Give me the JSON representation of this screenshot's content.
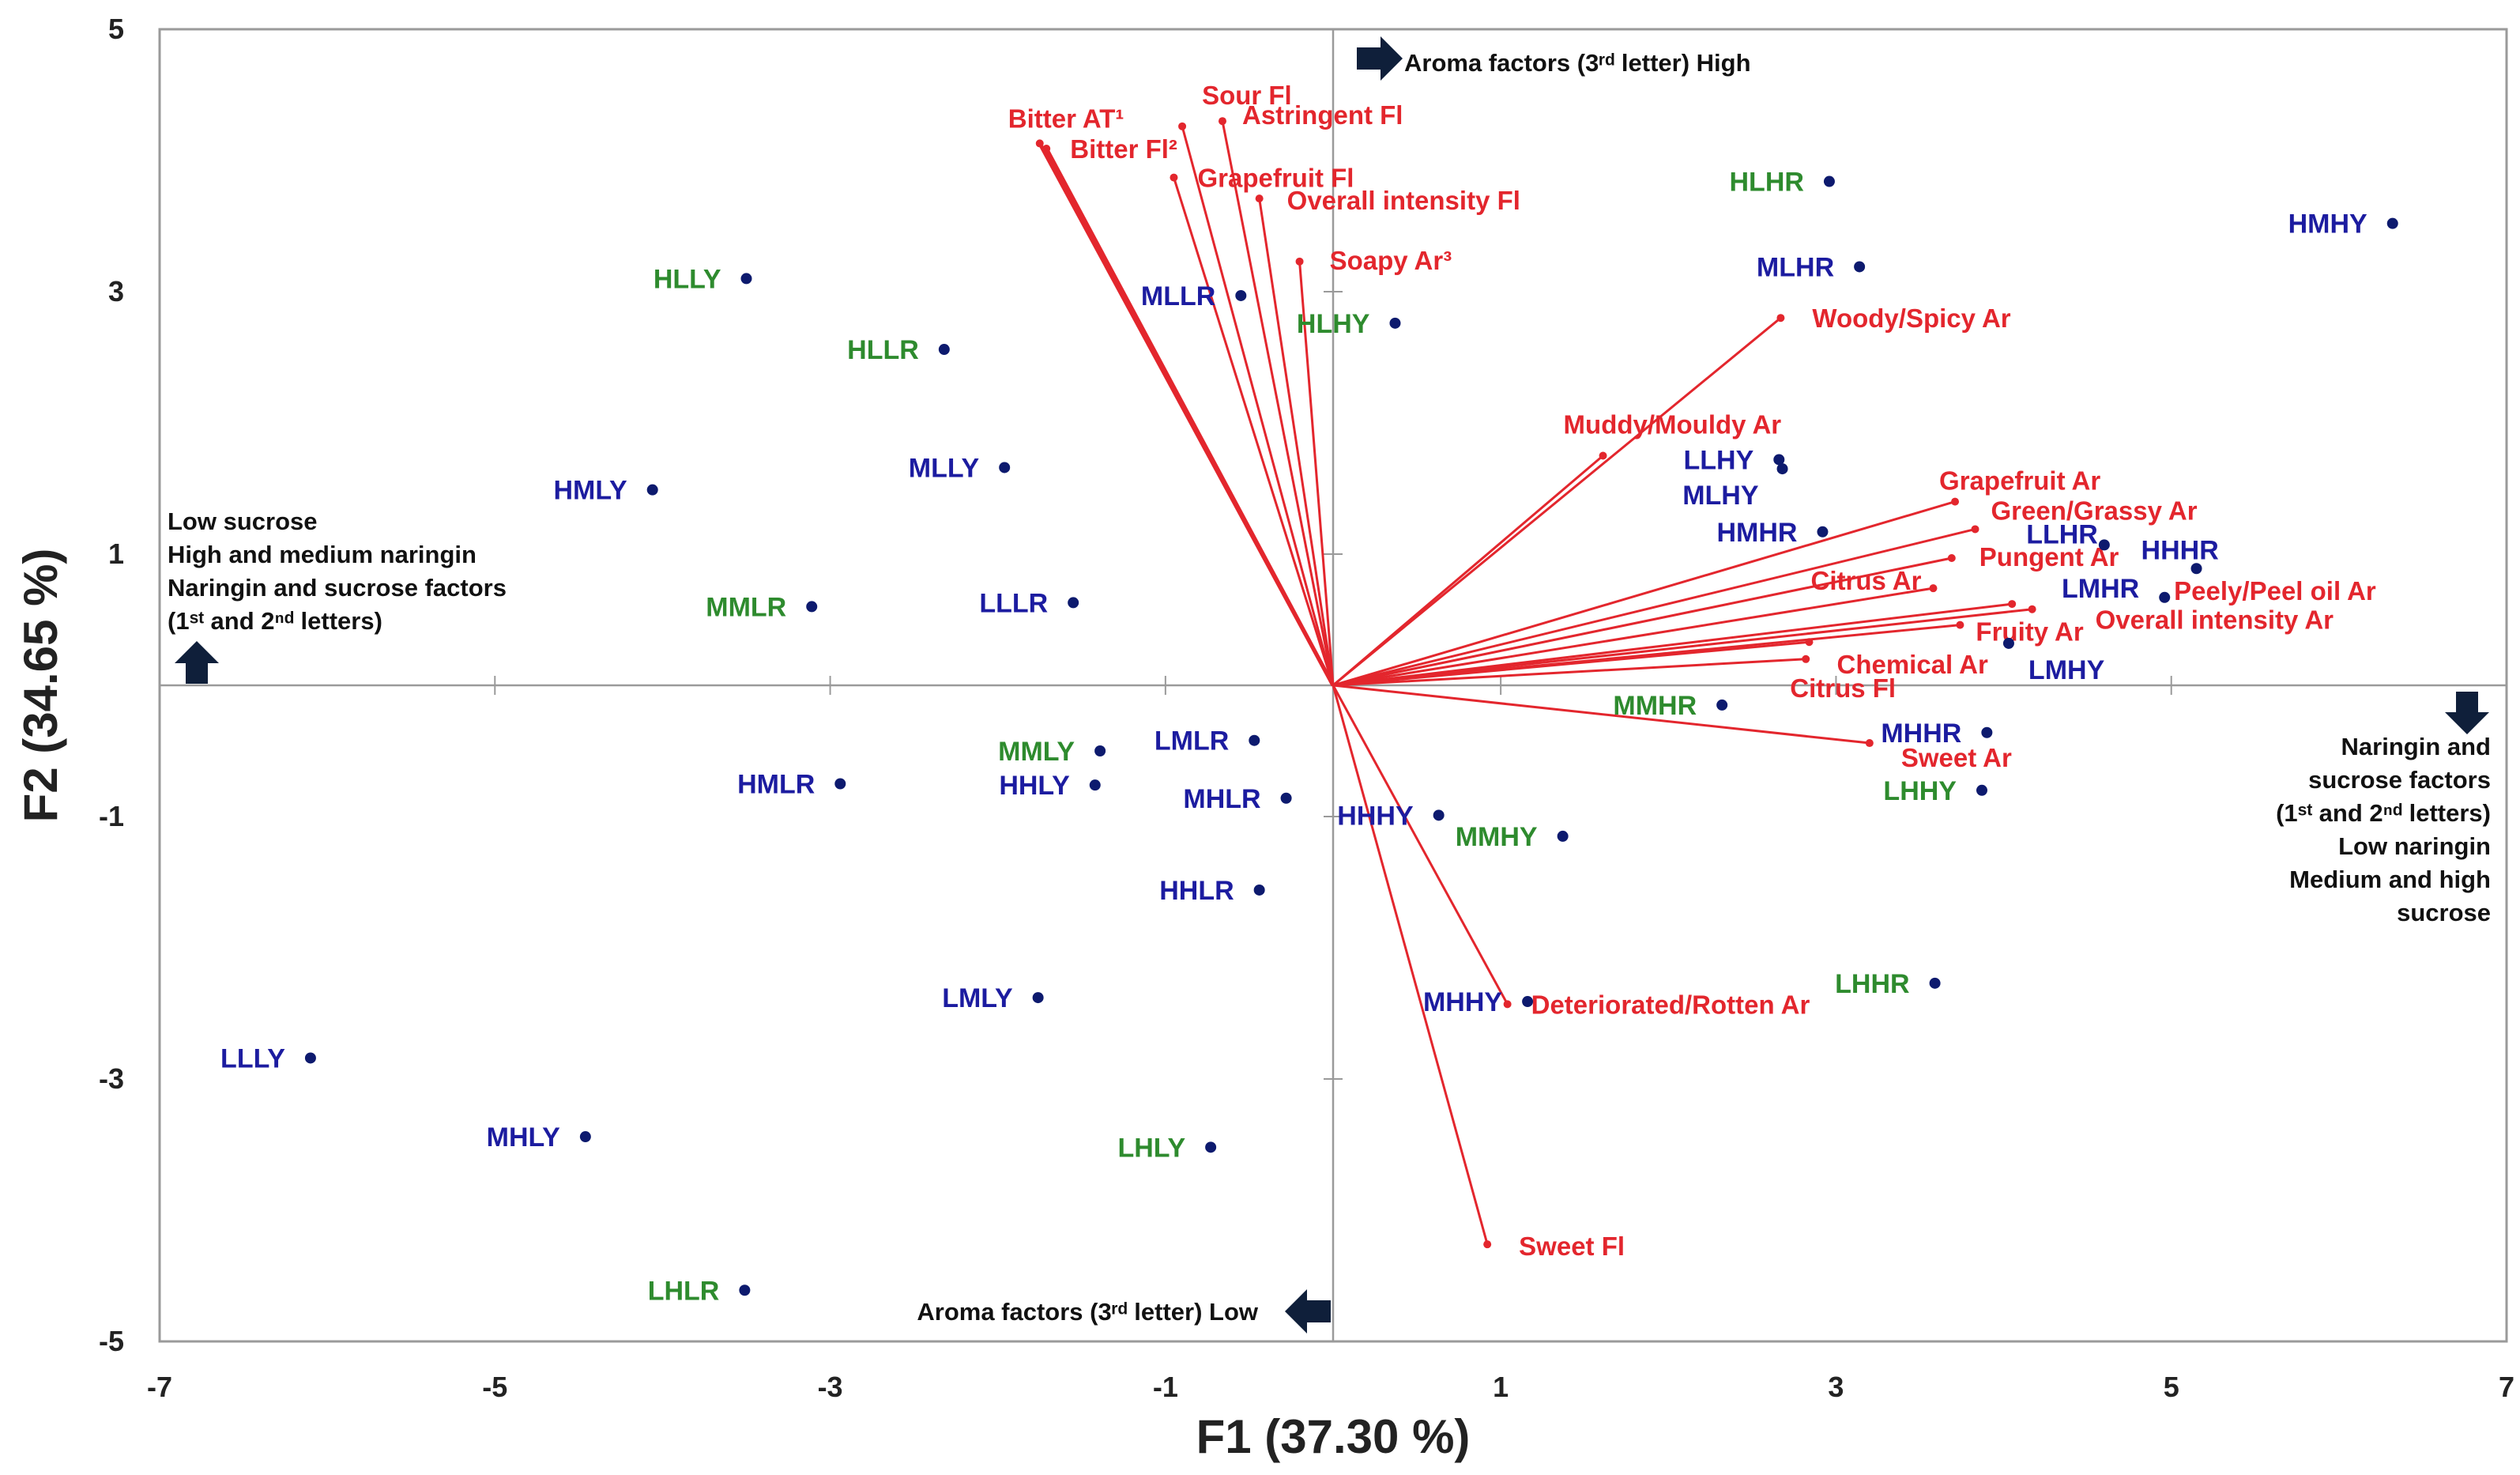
{
  "chart_data": {
    "type": "scatter",
    "subtype": "biplot",
    "xlabel": "F1 (37.30 %)",
    "ylabel": "F2 (34.65 %)",
    "xlim": [
      -7,
      7
    ],
    "ylim": [
      -5,
      5
    ],
    "xticks": [
      -7,
      -5,
      -3,
      -1,
      1,
      3,
      5,
      7
    ],
    "yticks": [
      5,
      3,
      1,
      -1,
      -3,
      -5
    ],
    "colors": {
      "blue": "#1c1ca0",
      "green": "#2e8b2e",
      "vector": "#e3262d",
      "dot": "#0d1a6e"
    },
    "observations": [
      {
        "label": "HMHY",
        "x": 6.32,
        "y": 3.52,
        "group": "blue"
      },
      {
        "label": "HLHR",
        "x": 2.96,
        "y": 3.84,
        "group": "green"
      },
      {
        "label": "MLHR",
        "x": 3.14,
        "y": 3.19,
        "group": "blue"
      },
      {
        "label": "HLLY",
        "x": -3.5,
        "y": 3.1,
        "group": "green"
      },
      {
        "label": "MLLR",
        "x": -0.55,
        "y": 2.97,
        "group": "blue"
      },
      {
        "label": "HLHY",
        "x": 0.37,
        "y": 2.76,
        "group": "green"
      },
      {
        "label": "HLLR",
        "x": -2.32,
        "y": 2.56,
        "group": "green"
      },
      {
        "label": "MLLY",
        "x": -1.96,
        "y": 1.66,
        "group": "blue"
      },
      {
        "label": "HMLY",
        "x": -4.06,
        "y": 1.49,
        "group": "blue"
      },
      {
        "label": "LLHY",
        "x": 2.66,
        "y": 1.72,
        "group": "blue"
      },
      {
        "label": "MLHY",
        "x": 2.68,
        "y": 1.65,
        "group": "blue"
      },
      {
        "label": "HMHR",
        "x": 2.92,
        "y": 1.17,
        "group": "blue"
      },
      {
        "label": "LLHR",
        "x": 4.6,
        "y": 1.07,
        "group": "blue"
      },
      {
        "label": "HHHR",
        "x": 5.15,
        "y": 0.89,
        "group": "blue"
      },
      {
        "label": "LMHR",
        "x": 4.96,
        "y": 0.67,
        "group": "blue"
      },
      {
        "label": "LMHY",
        "x": 4.03,
        "y": 0.32,
        "group": "blue"
      },
      {
        "label": "MMLR",
        "x": -3.11,
        "y": 0.6,
        "group": "green"
      },
      {
        "label": "LLLR",
        "x": -1.55,
        "y": 0.63,
        "group": "blue"
      },
      {
        "label": "MMHR",
        "x": 2.32,
        "y": -0.15,
        "group": "green"
      },
      {
        "label": "MHHR",
        "x": 3.9,
        "y": -0.36,
        "group": "blue"
      },
      {
        "label": "LHHY",
        "x": 3.87,
        "y": -0.8,
        "group": "green"
      },
      {
        "label": "LMLR",
        "x": -0.47,
        "y": -0.42,
        "group": "blue"
      },
      {
        "label": "MMLY",
        "x": -1.39,
        "y": -0.5,
        "group": "green"
      },
      {
        "label": "HHLY",
        "x": -1.42,
        "y": -0.76,
        "group": "blue"
      },
      {
        "label": "HMLR",
        "x": -2.94,
        "y": -0.75,
        "group": "blue"
      },
      {
        "label": "MHLR",
        "x": -0.28,
        "y": -0.86,
        "group": "blue"
      },
      {
        "label": "HHHY",
        "x": 0.63,
        "y": -0.99,
        "group": "blue"
      },
      {
        "label": "MMHY",
        "x": 1.37,
        "y": -1.15,
        "group": "green"
      },
      {
        "label": "HHLR",
        "x": -0.44,
        "y": -1.56,
        "group": "blue"
      },
      {
        "label": "LHHR",
        "x": 3.59,
        "y": -2.27,
        "group": "green"
      },
      {
        "label": "MHHY",
        "x": 1.16,
        "y": -2.41,
        "group": "blue"
      },
      {
        "label": "LMLY",
        "x": -1.76,
        "y": -2.38,
        "group": "blue"
      },
      {
        "label": "LLLY",
        "x": -6.1,
        "y": -2.84,
        "group": "blue"
      },
      {
        "label": "MHLY",
        "x": -4.46,
        "y": -3.44,
        "group": "blue"
      },
      {
        "label": "LHLY",
        "x": -0.73,
        "y": -3.52,
        "group": "green"
      },
      {
        "label": "LHLR",
        "x": -3.51,
        "y": -4.61,
        "group": "green"
      }
    ],
    "variables": [
      {
        "label": "Bitter AT¹",
        "x": -1.75,
        "y": 4.13
      },
      {
        "label": "Bitter Fl²",
        "x": -1.71,
        "y": 4.09
      },
      {
        "label": "Sour Fl",
        "x": -0.9,
        "y": 4.26
      },
      {
        "label": "Astringent Fl",
        "x": -0.66,
        "y": 4.3
      },
      {
        "label": "Grapefruit Fl",
        "x": -0.95,
        "y": 3.87
      },
      {
        "label": "Overall intensity Fl",
        "x": -0.44,
        "y": 3.71
      },
      {
        "label": "Soapy Ar³",
        "x": -0.2,
        "y": 3.23
      },
      {
        "label": "Woody/Spicy Ar",
        "x": 2.67,
        "y": 2.8
      },
      {
        "label": "Muddy/Mouldy  Ar",
        "x": 1.61,
        "y": 1.75
      },
      {
        "label": "Grapefruit Ar",
        "x": 3.71,
        "y": 1.4
      },
      {
        "label": "Green/Grassy Ar",
        "x": 3.83,
        "y": 1.19
      },
      {
        "label": "Pungent Ar",
        "x": 3.69,
        "y": 0.97
      },
      {
        "label": "Citrus Ar",
        "x": 3.58,
        "y": 0.74
      },
      {
        "label": "Peely/Peel oil Ar",
        "x": 4.05,
        "y": 0.62
      },
      {
        "label": "Overall intensity Ar",
        "x": 4.17,
        "y": 0.58
      },
      {
        "label": "Fruity Ar",
        "x": 3.74,
        "y": 0.46
      },
      {
        "label": "Chemical  Ar",
        "x": 2.84,
        "y": 0.33
      },
      {
        "label": "Citrus Fl",
        "x": 2.82,
        "y": 0.2
      },
      {
        "label": "Sweet Ar",
        "x": 3.2,
        "y": -0.44
      },
      {
        "label": "Deteriorated/Rotten Ar",
        "x": 1.04,
        "y": -2.43
      },
      {
        "label": "Sweet Fl",
        "x": 0.92,
        "y": -4.26
      }
    ],
    "annotations": {
      "top": "Aroma factors (3ʳᵈ letter) High",
      "bottom": "Aroma factors (3ʳᵈ letter) Low",
      "left": [
        "Low sucrose",
        "High and medium naringin",
        "Naringin and sucrose factors",
        "(1ˢᵗ and 2ⁿᵈ letters)"
      ],
      "right": [
        "Naringin and",
        "sucrose factors",
        "(1ˢᵗ and 2ⁿᵈ letters)",
        "Low naringin",
        "Medium and high",
        "sucrose"
      ]
    }
  }
}
